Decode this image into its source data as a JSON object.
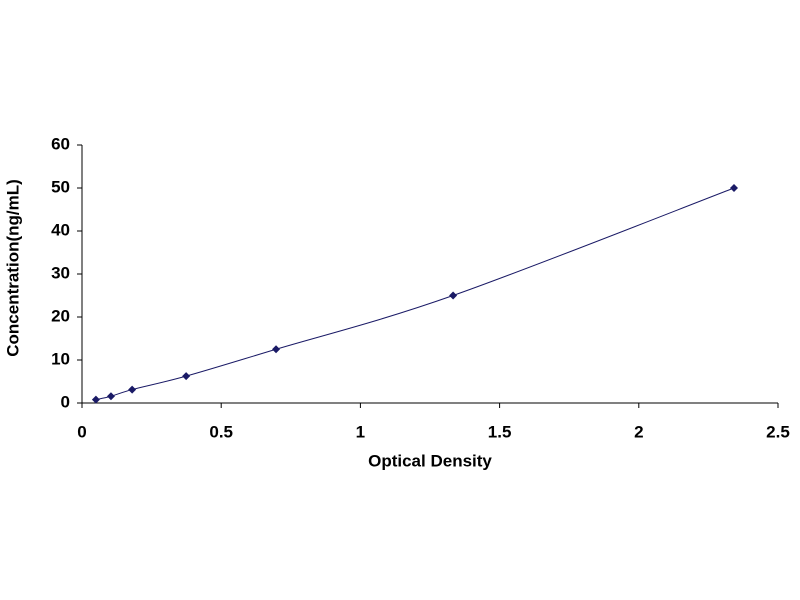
{
  "chart_data": {
    "type": "scatter",
    "x_label": "Optical Density",
    "y_label": "Concentration(ng/mL)",
    "series": [
      {
        "x": [
          0.05,
          0.104,
          0.18,
          0.374,
          0.697,
          1.333,
          2.342
        ],
        "values": [
          0.78,
          1.56,
          3.125,
          6.25,
          12.5,
          25,
          50
        ],
        "color": "#1a1a66"
      }
    ],
    "xlim": [
      0,
      2.5
    ],
    "xticks": [
      0,
      0.5,
      1,
      1.5,
      2,
      2.5
    ],
    "ylim": [
      0,
      60
    ],
    "yticks": [
      0,
      10,
      20,
      30,
      40,
      50,
      60
    ],
    "grid": false,
    "trendline": true
  }
}
